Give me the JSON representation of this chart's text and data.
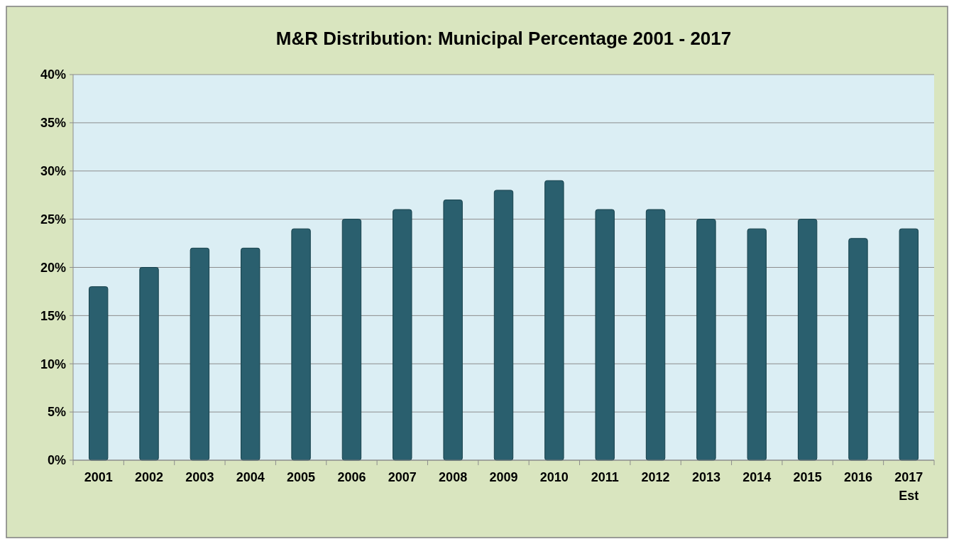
{
  "chart_data": {
    "type": "bar",
    "title": "M&R Distribution: Municipal Percentage 2001 - 2017",
    "categories": [
      "2001",
      "2002",
      "2003",
      "2004",
      "2005",
      "2006",
      "2007",
      "2008",
      "2009",
      "2010",
      "2011",
      "2012",
      "2013",
      "2014",
      "2015",
      "2016",
      "2017\nEst"
    ],
    "values": [
      18,
      20,
      22,
      22,
      24,
      25,
      26,
      27,
      28,
      29,
      26,
      26,
      25,
      24,
      25,
      23,
      24
    ],
    "color": "#2a5f6e",
    "ylim": [
      0,
      40
    ],
    "yticks": [
      {
        "value": 0,
        "label": "0%"
      },
      {
        "value": 5,
        "label": "5%"
      },
      {
        "value": 10,
        "label": "10%"
      },
      {
        "value": 15,
        "label": "15%"
      },
      {
        "value": 20,
        "label": "20%"
      },
      {
        "value": 25,
        "label": "25%"
      },
      {
        "value": 30,
        "label": "30%"
      },
      {
        "value": 35,
        "label": "35%"
      },
      {
        "value": 40,
        "label": "40%"
      }
    ],
    "grid": "y"
  }
}
